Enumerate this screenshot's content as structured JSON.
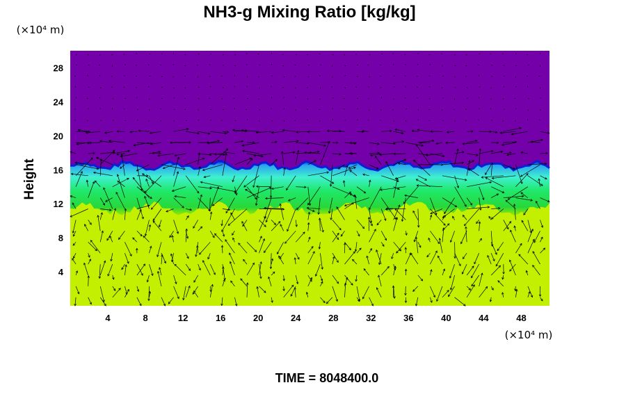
{
  "chart_data": {
    "type": "heatmap",
    "title": "NH3-g Mixing Ratio [kg/kg]",
    "ylabel": "Height",
    "x_unit": "(×10⁴ m)",
    "y_unit": "(×10⁴ m)",
    "xlim": [
      0,
      51
    ],
    "ylim": [
      0,
      30
    ],
    "x_ticks": [
      4,
      8,
      12,
      16,
      20,
      24,
      28,
      32,
      36,
      40,
      44,
      48
    ],
    "y_ticks": [
      4,
      8,
      12,
      16,
      20,
      24,
      28
    ],
    "x_tick_labels": [
      "4",
      "8",
      "12",
      "16",
      "20",
      "24",
      "28",
      "32",
      "36",
      "40",
      "44",
      "48"
    ],
    "y_tick_labels": [
      "4",
      "8",
      "12",
      "16",
      "20",
      "24",
      "28"
    ],
    "layers": [
      {
        "name": "upper",
        "y_range": [
          17,
          30
        ],
        "color": "#7300a8"
      },
      {
        "name": "transition",
        "y_range": [
          16.5,
          17
        ],
        "color": "#0a1fd6"
      },
      {
        "name": "mixing",
        "y_range": [
          12,
          16.5
        ],
        "color": "#1fe86a"
      },
      {
        "name": "lower",
        "y_range": [
          0,
          12
        ],
        "color": "#c3f000"
      }
    ],
    "vector_overlay": true,
    "time_label": "TIME = 8048400.0"
  }
}
